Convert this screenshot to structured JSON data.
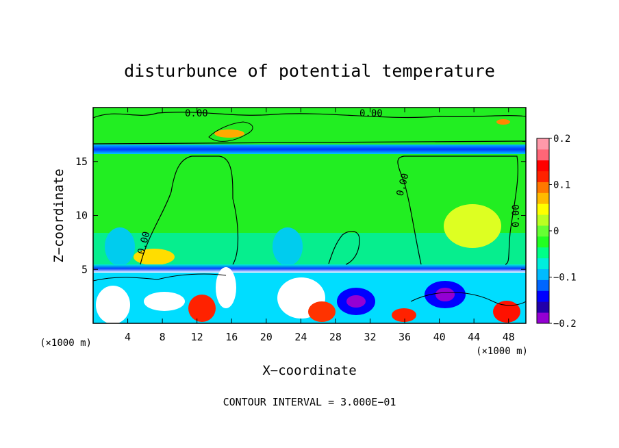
{
  "chart_data": {
    "type": "heatmap",
    "title": "disturbunce of potential temperature",
    "xlabel": "X−coordinate",
    "ylabel": "Z−coordinate",
    "x_unit_label": "(×1000 m)",
    "y_unit_label": "(×1000 m)",
    "footer": "CONTOUR INTERVAL = 3.000E−01",
    "xlim": [
      0,
      50
    ],
    "ylim": [
      0,
      20
    ],
    "x_ticks": [
      "4",
      "8",
      "12",
      "16",
      "20",
      "24",
      "28",
      "32",
      "36",
      "40",
      "44",
      "48"
    ],
    "y_ticks": [
      "5",
      "10",
      "15"
    ],
    "colorbar": {
      "range": [
        -0.2,
        0.2
      ],
      "tick_labels": [
        "0.2",
        "0.1",
        "0",
        "−0.1",
        "−0.2"
      ],
      "colors": [
        "#9400d3",
        "#2200aa",
        "#0000ff",
        "#0066ff",
        "#00bbff",
        "#00eedd",
        "#00ff88",
        "#22ff22",
        "#66ff33",
        "#bbff22",
        "#ffff00",
        "#ffbb00",
        "#ff7700",
        "#ff2200",
        "#ff0000",
        "#ff6677",
        "#ff99aa"
      ]
    },
    "contour_labels": [
      "0.00",
      "0.00",
      "0.00",
      "0.00",
      "0.00"
    ],
    "grid": false
  }
}
